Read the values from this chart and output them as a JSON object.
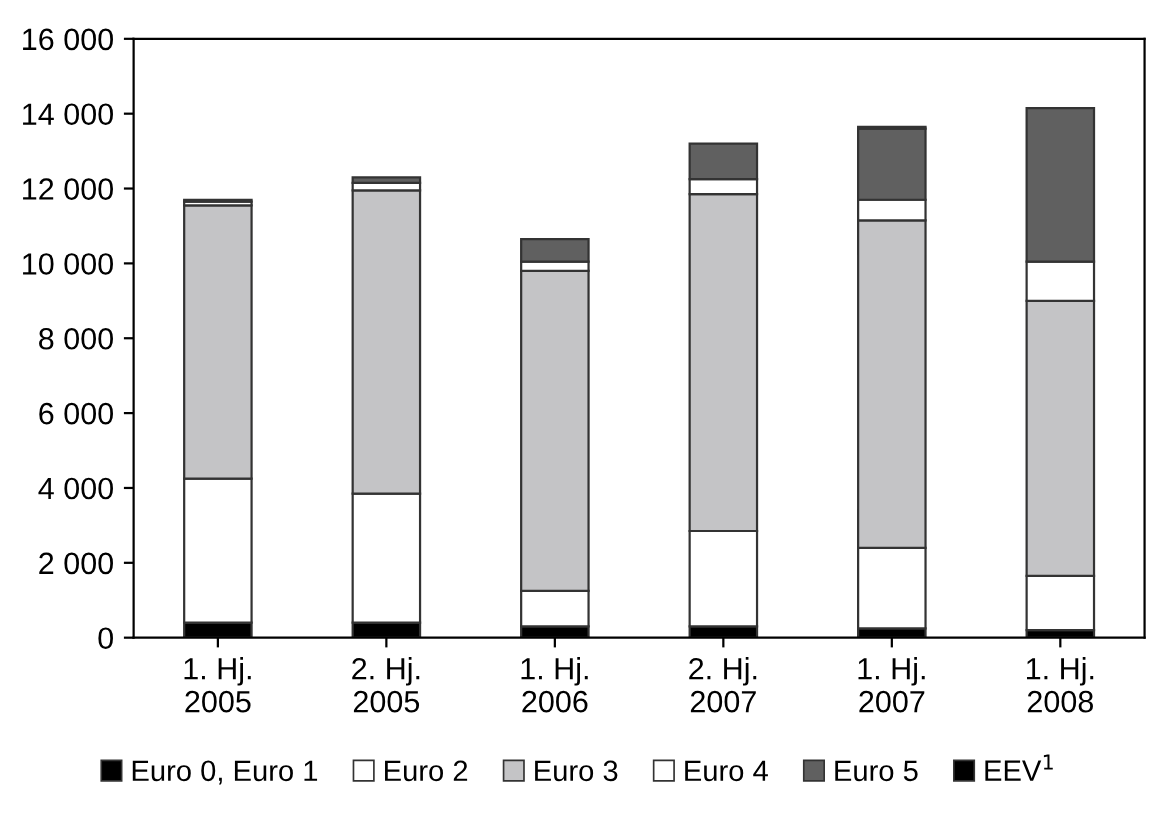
{
  "chart_data": {
    "type": "bar",
    "stacked": true,
    "categories": [
      "1. Hj.\n2005",
      "2. Hj.\n2005",
      "1. Hj.\n2006",
      "2. Hj.\n2007",
      "1. Hj.\n2007",
      "1. Hj.\n2008"
    ],
    "series": [
      {
        "name": "Euro 0, Euro 1",
        "color": "#000000",
        "values": [
          400,
          400,
          300,
          300,
          250,
          200
        ]
      },
      {
        "name": "Euro 2",
        "color": "#ffffff",
        "values": [
          3850,
          3450,
          950,
          2550,
          2150,
          1450
        ]
      },
      {
        "name": "Euro 3",
        "color": "#c4c4c6",
        "values": [
          7300,
          8100,
          8550,
          9000,
          8750,
          7350
        ]
      },
      {
        "name": "Euro 4",
        "color": "#ffffff",
        "values": [
          100,
          200,
          250,
          400,
          550,
          1050
        ]
      },
      {
        "name": "Euro 5",
        "color": "#606060",
        "values": [
          50,
          150,
          600,
          950,
          1900,
          4100
        ]
      },
      {
        "name": "EEV$^{1}$",
        "color": "#000000",
        "values": [
          null,
          null,
          null,
          null,
          50,
          null
        ]
      }
    ],
    "ylim": [
      0,
      16000
    ],
    "yticks": [
      0,
      {
        "value": 2000,
        "label": "2 000"
      },
      {
        "value": 4000,
        "label": "4 000"
      },
      {
        "value": 6000,
        "label": "6 000"
      },
      {
        "value": 8000,
        "label": "8 000"
      },
      {
        "value": 10000,
        "label": "10 000"
      },
      {
        "value": 12000,
        "label": "12 000"
      },
      {
        "value": 14000,
        "label": "14 000"
      },
      {
        "value": 16000,
        "label": "16 000"
      }
    ],
    "grid": false,
    "legend": "bottom"
  }
}
